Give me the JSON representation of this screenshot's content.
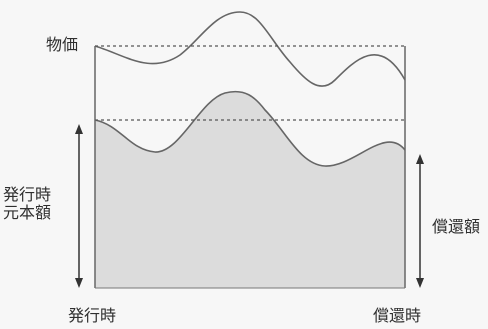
{
  "labels": {
    "price": "物価",
    "principal_line1": "発行時",
    "principal_line2": "元本額",
    "redemption_amount": "償還額",
    "issue_time": "発行時",
    "redemption_time": "償還時"
  },
  "colors": {
    "background": "#f7f7f7",
    "fill": "#dcdcdc",
    "line": "#666666",
    "dashed": "#555555",
    "arrow": "#333333"
  }
}
